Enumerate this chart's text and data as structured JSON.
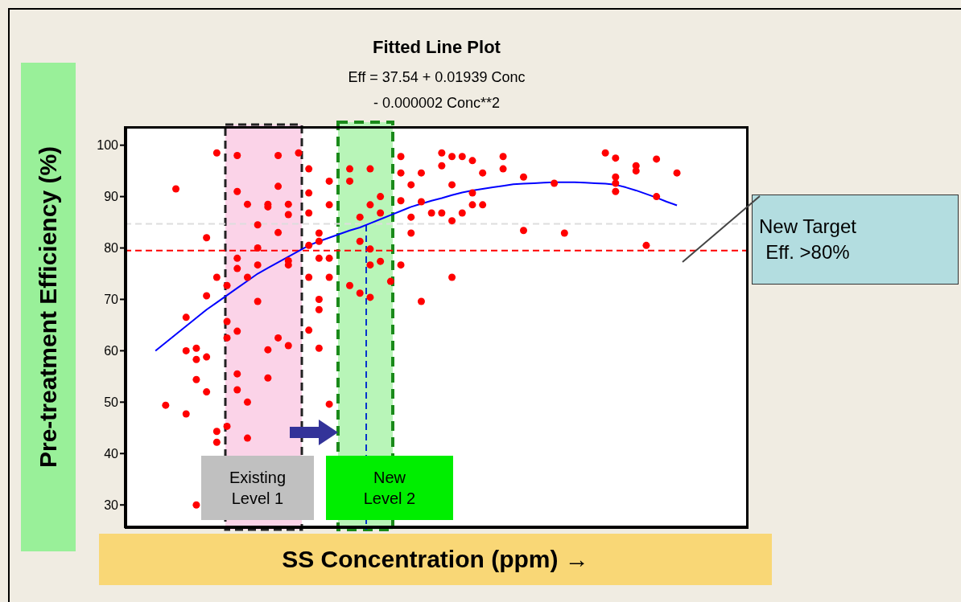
{
  "chart_data": {
    "type": "scatter",
    "title": "Fitted Line Plot",
    "subtitle": "Eff =  37.54 + 0.01939 Conc\n- 0.000002 Conc**2",
    "xlabel": "SS Concentration (ppm) →",
    "ylabel": "Pre-treatment Efficiency (%)",
    "categories": [
      null,
      null,
      null,
      null,
      null,
      null,
      null,
      null,
      null,
      null,
      null,
      null,
      null,
      null,
      null,
      null,
      null,
      null,
      null,
      null,
      null,
      null,
      null,
      null,
      null,
      null,
      null,
      null,
      null,
      null,
      null,
      null,
      null,
      null,
      null,
      null,
      null,
      null,
      null,
      null,
      null,
      null,
      null,
      null,
      null,
      null,
      null,
      null,
      null,
      null,
      null,
      null,
      null,
      null,
      null,
      null,
      null,
      null,
      null,
      null,
      null,
      null
    ],
    "ylim": [
      25.5,
      103.7
    ],
    "yticks": [
      30,
      40,
      50,
      60,
      70,
      80,
      90,
      100
    ],
    "grid": false,
    "legend": false,
    "marker": "circle",
    "series": [
      {
        "color": "#ff0000",
        "values": [
          null,
          null,
          null,
          null,
          49.4,
          91.5,
          66.5,
          60.5,
          52,
          98.5,
          72.7,
          98,
          88.5,
          84.5,
          88,
          98,
          88.5,
          98.5,
          95.4,
          82.9,
          74.3,
          null,
          95.4,
          86,
          95.4,
          86.8,
          73.5,
          97.8,
          92.3,
          94.6,
          86.8,
          98.5,
          97.8,
          97.8,
          97,
          94.6,
          null,
          97.8,
          null,
          93.8,
          null,
          null,
          92.6,
          82.9,
          null,
          null,
          null,
          98.5,
          93.8,
          null,
          95,
          80.5,
          97.3,
          null,
          94.6,
          null,
          null,
          null,
          null,
          null,
          null,
          null
        ]
      },
      {
        "color": "#ff0000",
        "values": [
          null,
          null,
          null,
          null,
          null,
          null,
          60,
          54.4,
          58.8,
          42.2,
          65.7,
          91,
          74.3,
          80,
          88.5,
          92,
          86.5,
          null,
          90.7,
          81.3,
          78,
          null,
          93,
          81.3,
          88.4,
          90,
          null,
          94.6,
          86,
          89,
          null,
          96,
          92.3,
          86.8,
          88.4,
          88.4,
          null,
          95.4,
          null,
          83.4,
          null,
          null,
          null,
          null,
          null,
          null,
          null,
          null,
          97.5,
          null,
          96,
          null,
          90,
          null,
          null,
          null,
          null,
          null,
          null,
          null,
          null,
          null
        ]
      },
      {
        "color": "#ff0000",
        "values": [
          null,
          null,
          null,
          null,
          null,
          null,
          47.7,
          58.3,
          70.7,
          44.3,
          62.5,
          78,
          50,
          76.7,
          60.2,
          83,
          76.7,
          null,
          86.8,
          78,
          49.6,
          null,
          72.7,
          71.2,
          76.7,
          77.4,
          null,
          89.2,
          82.9,
          69.6,
          null,
          86.8,
          85.3,
          null,
          90.7,
          null,
          null,
          null,
          null,
          null,
          null,
          null,
          null,
          null,
          null,
          null,
          null,
          null,
          91,
          null,
          null,
          null,
          null,
          null,
          null,
          null,
          null,
          null,
          null,
          null,
          null,
          null
        ]
      },
      {
        "color": "#ff0000",
        "values": [
          null,
          null,
          null,
          null,
          null,
          null,
          null,
          30,
          82,
          74.3,
          45.3,
          76,
          43,
          69.6,
          54.7,
          62.5,
          77.5,
          null,
          80.5,
          68,
          93,
          null,
          null,
          null,
          79.8,
          null,
          null,
          76.7,
          null,
          null,
          null,
          null,
          74.3,
          null,
          null,
          null,
          null,
          null,
          null,
          null,
          null,
          null,
          null,
          null,
          null,
          null,
          null,
          null,
          92.6,
          null,
          null,
          null,
          null,
          null,
          null,
          null,
          null,
          null,
          null,
          null,
          null,
          null
        ]
      },
      {
        "color": "#ff0000",
        "values": [
          null,
          null,
          null,
          null,
          null,
          null,
          null,
          null,
          null,
          null,
          null,
          63.8,
          null,
          null,
          null,
          null,
          61,
          null,
          74.3,
          60.5,
          88.4,
          null,
          null,
          null,
          70.4,
          null,
          null,
          null,
          null,
          null,
          null,
          null,
          null,
          null,
          null,
          null,
          null,
          null,
          null,
          null,
          null,
          null,
          null,
          null,
          null,
          null,
          null,
          null,
          null,
          null,
          null,
          null,
          null,
          null,
          null,
          null,
          null,
          null,
          null,
          null,
          null,
          null
        ]
      },
      {
        "color": "#ff0000",
        "values": [
          null,
          null,
          null,
          null,
          null,
          null,
          null,
          null,
          null,
          null,
          null,
          55.5,
          null,
          null,
          null,
          null,
          null,
          null,
          64,
          70,
          null,
          null,
          null,
          null,
          null,
          null,
          null,
          null,
          null,
          null,
          null,
          null,
          null,
          null,
          null,
          null,
          null,
          null,
          null,
          null,
          null,
          null,
          null,
          null,
          null,
          null,
          null,
          null,
          null,
          null,
          null,
          null,
          null,
          null,
          null,
          null,
          null,
          null,
          null,
          null,
          null,
          null
        ]
      },
      {
        "color": "#ff0000",
        "values": [
          null,
          null,
          null,
          null,
          null,
          null,
          null,
          null,
          null,
          null,
          null,
          52.4,
          null,
          null,
          null,
          null,
          null,
          null,
          null,
          null,
          null,
          null,
          null,
          null,
          null,
          null,
          null,
          null,
          null,
          null,
          null,
          null,
          null,
          null,
          null,
          null,
          null,
          null,
          null,
          null,
          null,
          null,
          null,
          null,
          null,
          null,
          null,
          null,
          null,
          null,
          null,
          null,
          null,
          null,
          null,
          null,
          null,
          null,
          null,
          null,
          null,
          null
        ]
      },
      {
        "type": "line",
        "color": "#0000ff",
        "line_style": "solid",
        "marker": "none",
        "values": [
          null,
          null,
          null,
          60,
          61.6,
          63.2,
          64.8,
          66.4,
          68,
          69.4,
          70.8,
          72.2,
          73.6,
          75,
          76.1,
          77.2,
          78.3,
          79.4,
          80.5,
          81.3,
          82,
          82.7,
          83.4,
          84,
          84.8,
          85.6,
          86.4,
          87.2,
          88,
          88.6,
          89.2,
          89.7,
          90.3,
          90.8,
          91.2,
          91.5,
          91.8,
          92.1,
          92.4,
          92.5,
          92.6,
          92.7,
          92.8,
          92.8,
          92.8,
          92.7,
          92.6,
          92.5,
          92.3,
          91.8,
          91.2,
          90.5,
          89.8,
          89,
          88.3,
          null,
          null,
          null,
          null,
          null,
          null,
          null
        ]
      }
    ],
    "ref_lines": [
      {
        "axis": "y",
        "value": 79.5,
        "label": "New Target\nEff. >80%",
        "color": "#ff0000",
        "line_style": "dashed"
      },
      {
        "axis": "y",
        "value": 84.7,
        "color": "#dddddd",
        "line_style": "dashed"
      }
    ],
    "annotations": [
      "Existing\nLevel 1",
      "New\nLevel 2"
    ]
  }
}
